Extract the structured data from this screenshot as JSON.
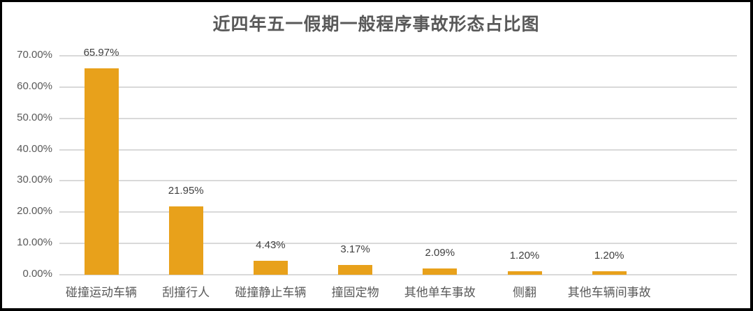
{
  "chart_data": {
    "type": "bar",
    "title": "近四年五一假期一般程序事故形态占比图",
    "xlabel": "",
    "ylabel": "",
    "categories": [
      "碰撞运动车辆",
      "刮撞行人",
      "碰撞静止车辆",
      "撞固定物",
      "其他单车事故",
      "侧翻",
      "其他车辆间事故"
    ],
    "values": [
      65.97,
      21.95,
      4.43,
      3.17,
      2.09,
      1.2,
      1.2
    ],
    "data_labels": [
      "65.97%",
      "21.95%",
      "4.43%",
      "3.17%",
      "2.09%",
      "1.20%",
      "1.20%"
    ],
    "ylim": [
      0,
      70
    ],
    "yticks": [
      "0.00%",
      "10.00%",
      "20.00%",
      "30.00%",
      "40.00%",
      "50.00%",
      "60.00%",
      "70.00%"
    ],
    "grid": true,
    "legend": "none",
    "bar_color": "#e8a11b"
  }
}
